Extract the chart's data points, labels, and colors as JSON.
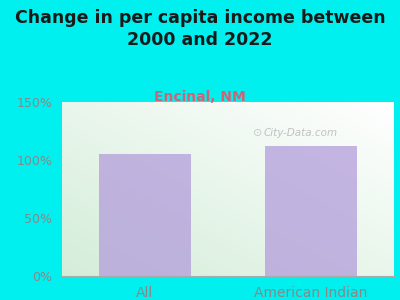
{
  "title": "Change in per capita income between\n2000 and 2022",
  "subtitle": "Encinal, NM",
  "categories": [
    "All",
    "American Indian"
  ],
  "values": [
    105,
    112
  ],
  "bar_color": "#b39ddb",
  "bar_alpha": 0.75,
  "title_fontsize": 12.5,
  "subtitle_fontsize": 10,
  "subtitle_color": "#cc6677",
  "title_color": "#1a1a1a",
  "background_color": "#00f0f0",
  "plot_bg_color_left": "#d4edda",
  "plot_bg_color_right": "#f8f8f8",
  "ylim": [
    0,
    150
  ],
  "yticks": [
    0,
    50,
    100,
    150
  ],
  "ytick_labels": [
    "0%",
    "50%",
    "100%",
    "150%"
  ],
  "watermark": "City-Data.com",
  "bar_width": 0.55,
  "xlabel_fontsize": 10,
  "tick_color": "#888888",
  "ytick_fontsize": 9
}
